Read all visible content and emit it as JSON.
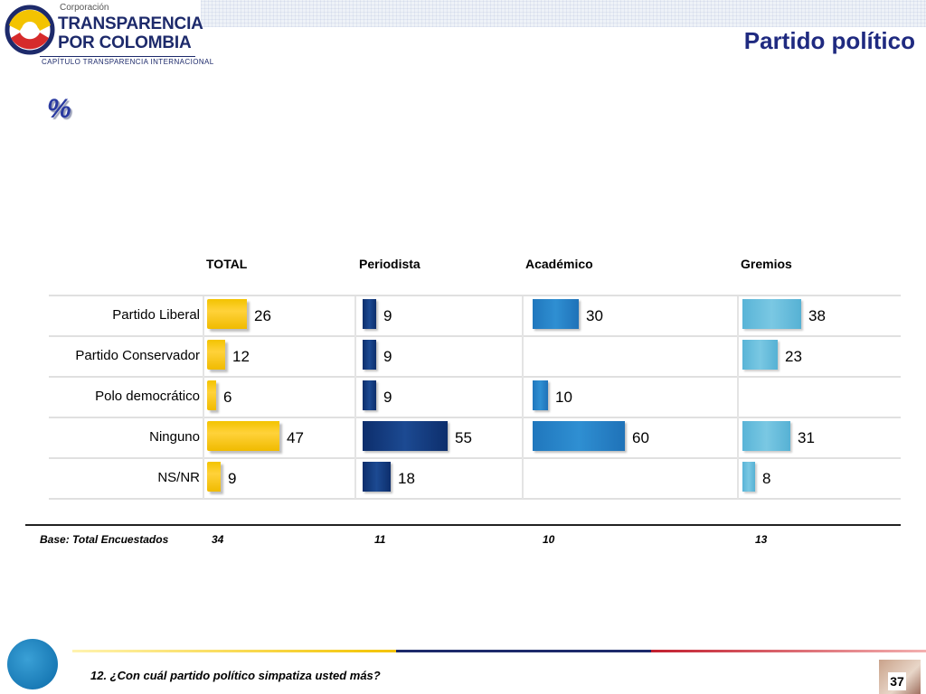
{
  "header": {
    "logo_small": "Corporación",
    "logo_line1": "TRANSPARENCIA",
    "logo_line2": "POR COLOMBIA",
    "logo_sub": "CAPÍTULO TRANSPARENCIA INTERNACIONAL",
    "title": "Partido político",
    "unit_symbol": "%"
  },
  "chart_data": {
    "type": "bar",
    "categories": [
      "Partido Liberal",
      "Partido Conservador",
      "Polo democrático",
      "Ninguno",
      "NS/NR"
    ],
    "series": [
      {
        "name": "TOTAL",
        "values": [
          26,
          12,
          6,
          47,
          9
        ]
      },
      {
        "name": "Periodista",
        "values": [
          9,
          9,
          9,
          55,
          18
        ]
      },
      {
        "name": "Académico",
        "values": [
          30,
          null,
          10,
          60,
          null
        ]
      },
      {
        "name": "Gremios",
        "values": [
          38,
          23,
          null,
          31,
          8
        ]
      }
    ],
    "base_label": "Base: Total Encuestados",
    "bases": [
      34,
      11,
      10,
      13
    ],
    "colors": [
      "#f5c400",
      "#14386f",
      "#2680c4",
      "#62b8da"
    ]
  },
  "footer": {
    "question": "12. ¿Con cuál partido político simpatiza usted más?",
    "page_number": "37"
  }
}
